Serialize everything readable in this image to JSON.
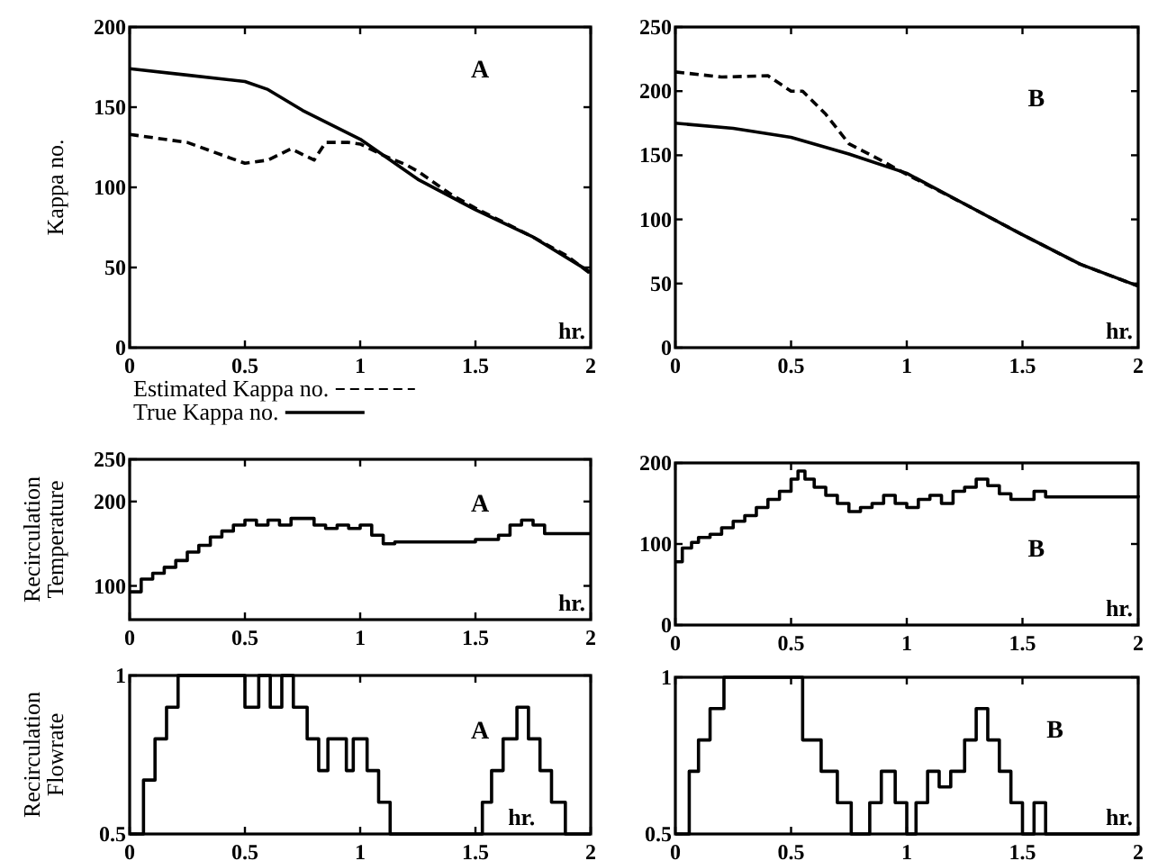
{
  "chart_data": [
    {
      "type": "line",
      "ylabel": "Kappa no.",
      "xlabel": "hr.",
      "annotations": [
        "A"
      ],
      "xlim": [
        0,
        2
      ],
      "ylim": [
        0,
        200
      ],
      "xticks": [
        0,
        0.5,
        1,
        1.5,
        2
      ],
      "yticks": [
        0,
        50,
        100,
        150,
        200
      ],
      "legend": "bottom",
      "series": [
        {
          "name": "Estimated Kappa no.",
          "color": "#000000",
          "line_style": "dashed",
          "x": [
            0,
            0.25,
            0.5,
            0.6,
            0.7,
            0.8,
            0.85,
            0.95,
            1,
            1.1,
            1.2,
            1.25,
            1.4,
            1.5,
            1.75,
            1.9,
            2
          ],
          "values": [
            133,
            128,
            115,
            117,
            124,
            117,
            128,
            128,
            127,
            120,
            114,
            110,
            95,
            87,
            69,
            57,
            46
          ]
        },
        {
          "name": "True Kappa no.",
          "color": "#000000",
          "line_style": "solid",
          "x": [
            0,
            0.25,
            0.5,
            0.6,
            0.75,
            1,
            1.25,
            1.5,
            1.75,
            2
          ],
          "values": [
            174,
            170,
            166,
            161,
            148,
            130,
            105,
            86,
            69,
            47
          ]
        }
      ]
    },
    {
      "type": "line",
      "xlabel": "hr.",
      "annotations": [
        "B"
      ],
      "xlim": [
        0,
        2
      ],
      "ylim": [
        0,
        250
      ],
      "xticks": [
        0,
        0.5,
        1,
        1.5,
        2
      ],
      "yticks": [
        0,
        50,
        100,
        150,
        200,
        250
      ],
      "series": [
        {
          "color": "#000000",
          "line_style": "dashed",
          "x": [
            0,
            0.2,
            0.4,
            0.5,
            0.55,
            0.65,
            0.75,
            0.9,
            1,
            1.25,
            1.5,
            1.75,
            2
          ],
          "values": [
            215,
            211,
            212,
            200,
            200,
            182,
            159,
            145,
            135,
            112,
            88,
            65,
            48
          ]
        },
        {
          "color": "#000000",
          "line_style": "solid",
          "x": [
            0,
            0.25,
            0.5,
            0.75,
            1,
            1.25,
            1.5,
            1.75,
            2
          ],
          "values": [
            175,
            171,
            164,
            151,
            136,
            112,
            88,
            65,
            48
          ]
        }
      ]
    },
    {
      "type": "step",
      "ylabel": "Recirculation Temperature",
      "xlabel": "hr.",
      "annotations": [
        "A"
      ],
      "xlim": [
        0,
        2
      ],
      "ylim": [
        60,
        250
      ],
      "xticks": [
        0,
        0.5,
        1,
        1.5,
        2
      ],
      "yticks": [
        100,
        200,
        250
      ],
      "series": [
        {
          "color": "#000000",
          "line_style": "solid",
          "x": [
            0,
            0.05,
            0.1,
            0.15,
            0.2,
            0.25,
            0.3,
            0.35,
            0.4,
            0.45,
            0.5,
            0.55,
            0.6,
            0.65,
            0.7,
            0.8,
            0.85,
            0.9,
            0.95,
            1,
            1.05,
            1.1,
            1.15,
            1.5,
            1.6,
            1.65,
            1.7,
            1.75,
            1.8,
            2
          ],
          "values": [
            93,
            108,
            115,
            122,
            130,
            140,
            148,
            158,
            165,
            172,
            178,
            172,
            178,
            172,
            180,
            172,
            168,
            172,
            168,
            172,
            160,
            150,
            152,
            155,
            160,
            172,
            178,
            172,
            162,
            162
          ]
        }
      ]
    },
    {
      "type": "step",
      "xlabel": "hr.",
      "annotations": [
        "B"
      ],
      "xlim": [
        0,
        2
      ],
      "ylim": [
        0,
        200
      ],
      "xticks": [
        0,
        0.5,
        1,
        1.5,
        2
      ],
      "yticks": [
        0,
        100,
        200
      ],
      "series": [
        {
          "color": "#000000",
          "line_style": "solid",
          "x": [
            0,
            0.03,
            0.07,
            0.1,
            0.15,
            0.2,
            0.25,
            0.3,
            0.35,
            0.4,
            0.45,
            0.5,
            0.53,
            0.56,
            0.6,
            0.65,
            0.7,
            0.75,
            0.8,
            0.85,
            0.9,
            0.95,
            1,
            1.05,
            1.1,
            1.15,
            1.2,
            1.25,
            1.3,
            1.35,
            1.4,
            1.45,
            1.55,
            1.6,
            2
          ],
          "values": [
            78,
            95,
            102,
            108,
            112,
            120,
            128,
            135,
            145,
            155,
            165,
            180,
            190,
            180,
            170,
            160,
            150,
            140,
            145,
            150,
            160,
            150,
            145,
            155,
            160,
            150,
            165,
            170,
            180,
            172,
            162,
            155,
            165,
            158,
            160
          ]
        }
      ]
    },
    {
      "type": "step",
      "ylabel": "Recirculation Flowrate",
      "xlabel": "hr.",
      "annotations": [
        "A"
      ],
      "xlim": [
        0,
        2
      ],
      "ylim": [
        0.5,
        1
      ],
      "xticks": [
        0,
        0.5,
        1,
        1.5,
        2
      ],
      "yticks": [
        0.5,
        1
      ],
      "series": [
        {
          "color": "#000000",
          "line_style": "solid",
          "x": [
            0,
            0.06,
            0.11,
            0.16,
            0.21,
            0.5,
            0.56,
            0.61,
            0.66,
            0.71,
            0.77,
            0.82,
            0.86,
            0.94,
            0.97,
            1.03,
            1.08,
            1.13,
            1.53,
            1.57,
            1.62,
            1.68,
            1.73,
            1.78,
            1.83,
            1.89,
            2
          ],
          "values": [
            0.5,
            0.67,
            0.8,
            0.9,
            1,
            0.9,
            1,
            0.9,
            1,
            0.9,
            0.8,
            0.7,
            0.8,
            0.7,
            0.8,
            0.7,
            0.6,
            0.5,
            0.6,
            0.7,
            0.8,
            0.9,
            0.8,
            0.7,
            0.6,
            0.5,
            0.5
          ]
        }
      ]
    },
    {
      "type": "step",
      "xlabel": "hr.",
      "annotations": [
        "B"
      ],
      "xlim": [
        0,
        2
      ],
      "ylim": [
        0.5,
        1
      ],
      "xticks": [
        0,
        0.5,
        1,
        1.5,
        2
      ],
      "yticks": [
        0.5,
        1
      ],
      "series": [
        {
          "color": "#000000",
          "line_style": "solid",
          "x": [
            0,
            0.06,
            0.1,
            0.15,
            0.21,
            0.55,
            0.63,
            0.7,
            0.76,
            0.84,
            0.89,
            0.95,
            1,
            1.04,
            1.09,
            1.14,
            1.19,
            1.25,
            1.3,
            1.35,
            1.4,
            1.45,
            1.5,
            1.55,
            1.6,
            2
          ],
          "values": [
            0.5,
            0.7,
            0.8,
            0.9,
            1,
            0.8,
            0.7,
            0.6,
            0.5,
            0.6,
            0.7,
            0.6,
            0.5,
            0.6,
            0.7,
            0.65,
            0.7,
            0.8,
            0.9,
            0.8,
            0.7,
            0.6,
            0.5,
            0.6,
            0.5,
            0.5
          ]
        }
      ]
    }
  ]
}
